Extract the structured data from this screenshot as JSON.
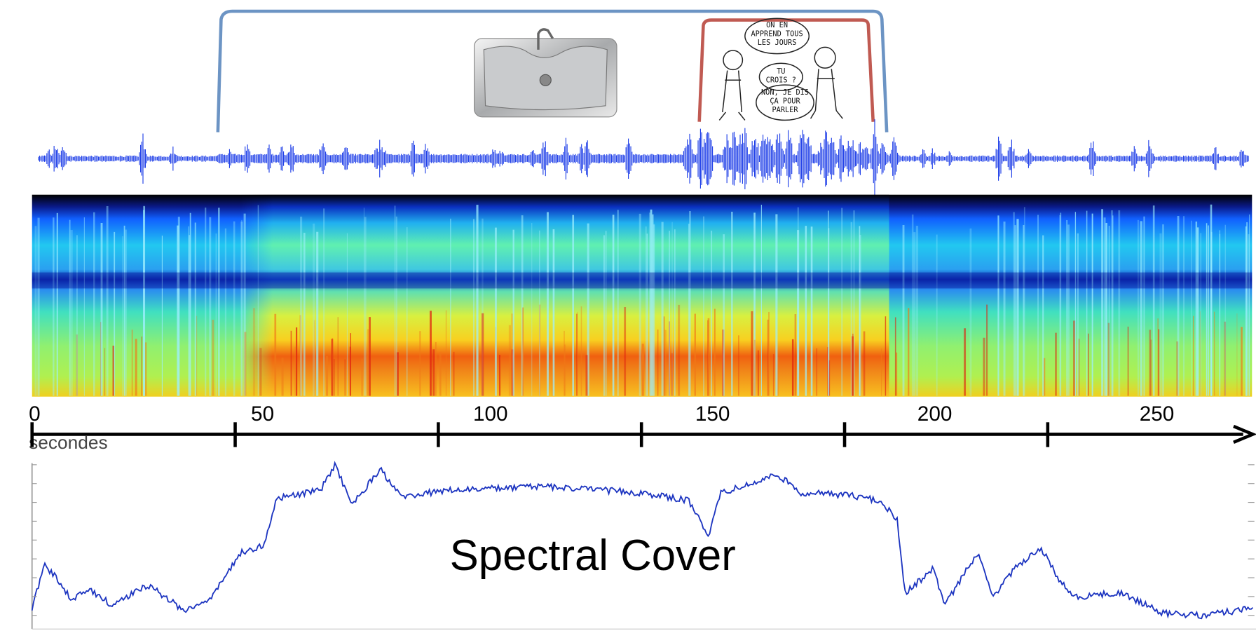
{
  "axis": {
    "ticks": [
      0,
      50,
      100,
      150,
      200,
      250
    ],
    "unit": "secondes"
  },
  "plot": {
    "label": "Spectral Cover"
  },
  "cartoon": {
    "bubbles": [
      [
        "ON EN",
        "APPREND TOUS",
        "LES JOURS"
      ],
      [
        "TU",
        "CROIS ?"
      ],
      [
        "NON, JE DIS",
        "ÇA POUR",
        "PARLER"
      ]
    ]
  }
}
